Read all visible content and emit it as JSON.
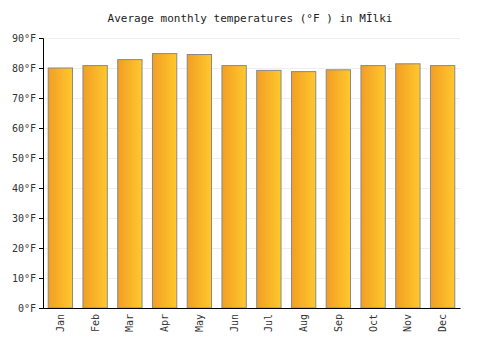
{
  "chart_data": {
    "type": "bar",
    "title": "Average monthly temperatures (°F ) in MĨlki",
    "categories": [
      "Jan",
      "Feb",
      "Mar",
      "Apr",
      "May",
      "Jun",
      "Jul",
      "Aug",
      "Sep",
      "Oct",
      "Nov",
      "Dec"
    ],
    "values": [
      80,
      80.8,
      82.8,
      84.8,
      84.5,
      80.8,
      79.2,
      78.8,
      79.4,
      80.8,
      81.4,
      80.8
    ],
    "color": "#ffa726",
    "ylim": [
      0,
      90
    ],
    "yticks": [
      {
        "value": 0,
        "label": "0°F"
      },
      {
        "value": 10,
        "label": "10°F"
      },
      {
        "value": 20,
        "label": "20°F"
      },
      {
        "value": 30,
        "label": "30°F"
      },
      {
        "value": 40,
        "label": "40°F"
      },
      {
        "value": 50,
        "label": "50°F"
      },
      {
        "value": 60,
        "label": "60°F"
      },
      {
        "value": 70,
        "label": "70°F"
      },
      {
        "value": 80,
        "label": "80°F"
      },
      {
        "value": 90,
        "label": "90°F"
      }
    ],
    "grid": true
  }
}
